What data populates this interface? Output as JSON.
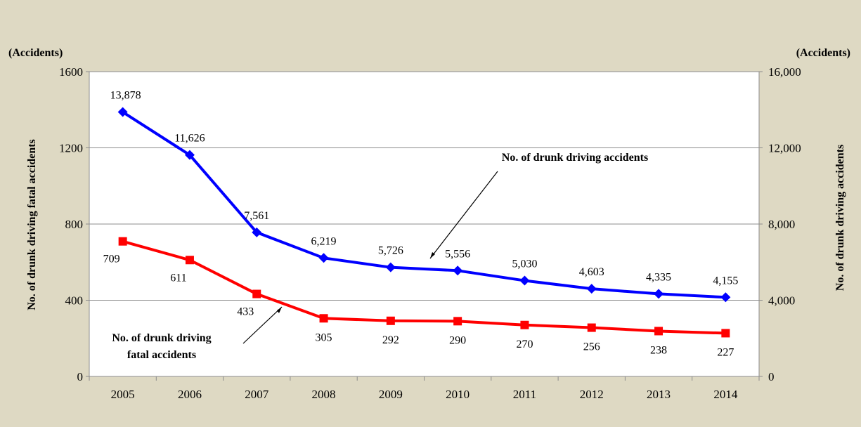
{
  "chart_data": {
    "type": "line",
    "categories": [
      "2005",
      "2006",
      "2007",
      "2008",
      "2009",
      "2010",
      "2011",
      "2012",
      "2013",
      "2014"
    ],
    "series": [
      {
        "name": "No. of drunk driving accidents",
        "axis": "right",
        "values": [
          13878,
          11626,
          7561,
          6219,
          5726,
          5556,
          5030,
          4603,
          4335,
          4155
        ],
        "labels": [
          "13,878",
          "11,626",
          "7,561",
          "6,219",
          "5,726",
          "5,556",
          "5,030",
          "4,603",
          "4,335",
          "4,155"
        ],
        "color": "#0000ff",
        "marker": "diamond"
      },
      {
        "name_lines": [
          "No. of drunk driving",
          "fatal accidents"
        ],
        "axis": "left",
        "values": [
          709,
          611,
          433,
          305,
          292,
          290,
          270,
          256,
          238,
          227
        ],
        "labels": [
          "709",
          "611",
          "433",
          "305",
          "292",
          "290",
          "270",
          "256",
          "238",
          "227"
        ],
        "color": "#ff0000",
        "marker": "square"
      }
    ],
    "y_left": {
      "label": "No. of drunk driving fatal accidents",
      "unit": "(Accidents)",
      "range": [
        0,
        1600
      ],
      "ticks": [
        "0",
        "400",
        "800",
        "1200",
        "1600"
      ]
    },
    "y_right": {
      "label": "No. of drunk driving accidents",
      "unit": "(Accidents)",
      "range": [
        0,
        16000
      ],
      "ticks": [
        "0",
        "4,000",
        "8,000",
        "12,000",
        "16,000"
      ]
    },
    "grid": true
  }
}
